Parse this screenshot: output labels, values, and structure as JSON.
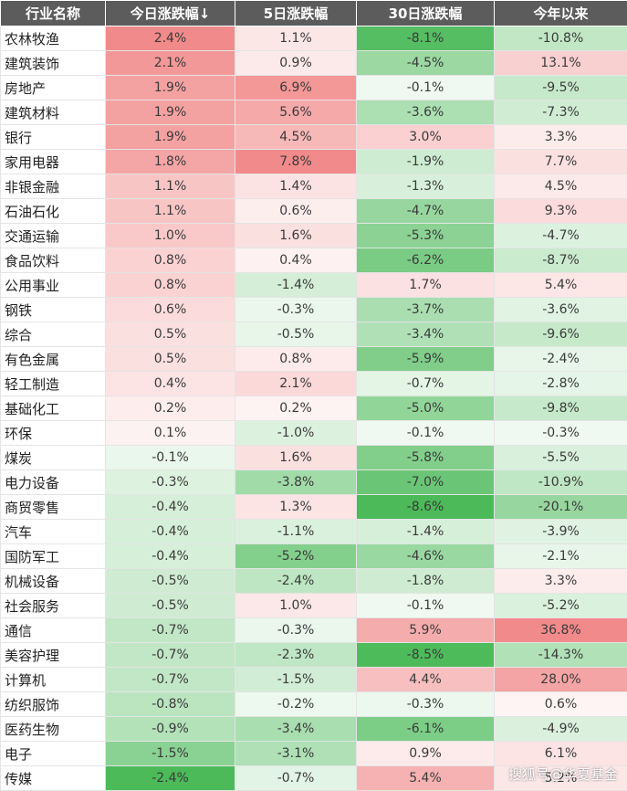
{
  "table": {
    "headers": [
      "行业名称",
      "今日涨跌幅↓",
      "5日涨跌幅",
      "30日涨跌幅",
      "今年以来"
    ],
    "rows": [
      {
        "name": "农林牧渔",
        "values": [
          2.4,
          1.1,
          -8.1,
          -10.8
        ]
      },
      {
        "name": "建筑装饰",
        "values": [
          2.1,
          0.9,
          -4.5,
          13.1
        ]
      },
      {
        "name": "房地产",
        "values": [
          1.9,
          6.9,
          -0.1,
          -9.5
        ]
      },
      {
        "name": "建筑材料",
        "values": [
          1.9,
          5.6,
          -3.6,
          -7.3
        ]
      },
      {
        "name": "银行",
        "values": [
          1.9,
          4.5,
          3.0,
          3.3
        ]
      },
      {
        "name": "家用电器",
        "values": [
          1.8,
          7.8,
          -1.9,
          7.7
        ]
      },
      {
        "name": "非银金融",
        "values": [
          1.1,
          1.4,
          -1.3,
          4.5
        ]
      },
      {
        "name": "石油石化",
        "values": [
          1.1,
          0.6,
          -4.7,
          9.3
        ]
      },
      {
        "name": "交通运输",
        "values": [
          1.0,
          1.6,
          -5.3,
          -4.7
        ]
      },
      {
        "name": "食品饮料",
        "values": [
          0.8,
          0.4,
          -6.2,
          -8.7
        ]
      },
      {
        "name": "公用事业",
        "values": [
          0.8,
          -1.4,
          1.7,
          5.4
        ]
      },
      {
        "name": "钢铁",
        "values": [
          0.6,
          -0.3,
          -3.7,
          -3.6
        ]
      },
      {
        "name": "综合",
        "values": [
          0.5,
          -0.5,
          -3.4,
          -9.6
        ]
      },
      {
        "name": "有色金属",
        "values": [
          0.5,
          0.8,
          -5.9,
          -2.4
        ]
      },
      {
        "name": "轻工制造",
        "values": [
          0.4,
          2.1,
          -0.7,
          -2.8
        ]
      },
      {
        "name": "基础化工",
        "values": [
          0.2,
          0.2,
          -5.0,
          -9.8
        ]
      },
      {
        "name": "环保",
        "values": [
          0.1,
          -1.0,
          -0.1,
          -0.3
        ]
      },
      {
        "name": "煤炭",
        "values": [
          -0.1,
          1.6,
          -5.8,
          -5.5
        ]
      },
      {
        "name": "电力设备",
        "values": [
          -0.3,
          -3.8,
          -7.0,
          -10.9
        ]
      },
      {
        "name": "商贸零售",
        "values": [
          -0.4,
          1.3,
          -8.6,
          -20.1
        ]
      },
      {
        "name": "汽车",
        "values": [
          -0.4,
          -1.1,
          -1.4,
          -3.9
        ]
      },
      {
        "name": "国防军工",
        "values": [
          -0.4,
          -5.2,
          -4.6,
          -2.1
        ]
      },
      {
        "name": "机械设备",
        "values": [
          -0.5,
          -2.4,
          -1.8,
          3.3
        ]
      },
      {
        "name": "社会服务",
        "values": [
          -0.5,
          1.0,
          -0.1,
          -5.2
        ]
      },
      {
        "name": "通信",
        "values": [
          -0.7,
          -0.3,
          5.9,
          36.8
        ]
      },
      {
        "name": "美容护理",
        "values": [
          -0.7,
          -2.3,
          -8.5,
          -14.3
        ]
      },
      {
        "name": "计算机",
        "values": [
          -0.7,
          -1.5,
          4.4,
          28.0
        ]
      },
      {
        "name": "纺织服饰",
        "values": [
          -0.8,
          -0.2,
          -0.3,
          0.6
        ]
      },
      {
        "name": "医药生物",
        "values": [
          -0.9,
          -3.4,
          -6.1,
          -4.9
        ]
      },
      {
        "name": "电子",
        "values": [
          -1.5,
          -3.1,
          0.9,
          6.1
        ]
      },
      {
        "name": "传媒",
        "values": [
          -2.4,
          -0.7,
          5.4,
          5.2
        ]
      }
    ]
  },
  "colors": {
    "header_bg": "#5c5c5c",
    "positive": "#f08080",
    "negative": "#3cb44b",
    "text": "#3a3a3a"
  },
  "watermark": "搜狐号@华夏基金"
}
